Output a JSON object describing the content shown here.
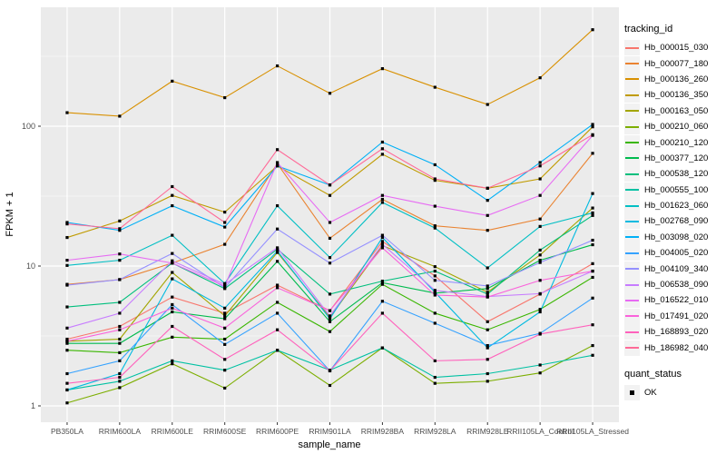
{
  "chart_data": {
    "type": "line",
    "title": "",
    "xlabel": "sample_name",
    "ylabel": "FPKM + 1",
    "y_scale": "log10",
    "y_ticks": [
      1,
      10,
      100
    ],
    "y_minor_ticks": [
      3.162,
      31.62,
      316.2
    ],
    "ylim": [
      1,
      600
    ],
    "grid": "on",
    "point_marker": "black-square",
    "categories": [
      "PB350LA",
      "RRIM600LA",
      "RRIM600LE",
      "RRIM600SE",
      "RRIM600PE",
      "RRIM901LA",
      "RRIM928BA",
      "RRIM928LA",
      "RRIM928LE",
      "RRII105LA_Control",
      "RRII105LA_Stressed"
    ],
    "legend": {
      "title": "tracking_id",
      "position": "right"
    },
    "quant_legend": {
      "title": "quant_status",
      "items": [
        {
          "label": "OK",
          "marker": "black-square"
        }
      ]
    },
    "series": [
      {
        "name": "Hb_000015_030",
        "color": "#F8766D",
        "values": [
          3.0,
          3.7,
          6.0,
          4.6,
          7.3,
          4.8,
          15.0,
          8.5,
          4.0,
          6.3,
          10.4
        ]
      },
      {
        "name": "Hb_000077_180",
        "color": "#EA8331",
        "values": [
          7.4,
          8.0,
          10.5,
          14.3,
          54,
          15.8,
          30,
          19.4,
          18,
          21.7,
          64
        ]
      },
      {
        "name": "Hb_000136_260",
        "color": "#D89000",
        "values": [
          125,
          118,
          210,
          160,
          270,
          172,
          258,
          190,
          143,
          222,
          490
        ]
      },
      {
        "name": "Hb_000136_350",
        "color": "#C09B00",
        "values": [
          16,
          21,
          32,
          24.3,
          52,
          32,
          63,
          41,
          36,
          42,
          99
        ]
      },
      {
        "name": "Hb_000163_050",
        "color": "#A3A500",
        "values": [
          2.9,
          3.0,
          9.0,
          4.4,
          12.5,
          4.3,
          14.0,
          9.9,
          6.5,
          12.0,
          26
        ]
      },
      {
        "name": "Hb_000210_060",
        "color": "#7CAE00",
        "values": [
          1.05,
          1.35,
          2.0,
          1.34,
          2.5,
          1.4,
          2.6,
          1.45,
          1.5,
          1.72,
          2.7
        ]
      },
      {
        "name": "Hb_000210_120",
        "color": "#39B600",
        "values": [
          2.5,
          2.4,
          3.1,
          3.0,
          5.5,
          3.4,
          7.4,
          4.6,
          3.5,
          4.9,
          8.3
        ]
      },
      {
        "name": "Hb_000377_120",
        "color": "#00BB4E",
        "values": [
          2.8,
          2.8,
          4.7,
          4.2,
          10.8,
          4.0,
          7.6,
          6.4,
          6.9,
          11.0,
          14.2
        ]
      },
      {
        "name": "Hb_000538_120",
        "color": "#00BF7D",
        "values": [
          5.1,
          5.5,
          10.5,
          6.9,
          13.2,
          6.3,
          7.8,
          9.2,
          6.3,
          13.0,
          23
        ]
      },
      {
        "name": "Hb_000555_100",
        "color": "#00C1A3",
        "values": [
          1.3,
          1.5,
          2.1,
          1.8,
          2.5,
          1.8,
          2.6,
          1.6,
          1.7,
          1.96,
          2.3
        ]
      },
      {
        "name": "Hb_001623_060",
        "color": "#00BFC4",
        "values": [
          10.1,
          11,
          16.6,
          7.5,
          27,
          11.5,
          28.5,
          18.7,
          9.7,
          19.2,
          24
        ]
      },
      {
        "name": "Hb_002768_090",
        "color": "#00BAE0",
        "values": [
          1.3,
          1.7,
          8.1,
          5.0,
          12.8,
          4.2,
          16.0,
          6.5,
          2.6,
          4.7,
          33
        ]
      },
      {
        "name": "Hb_003098_020",
        "color": "#00B0F6",
        "values": [
          20.5,
          18,
          27,
          19,
          52,
          38,
          77,
          53,
          29.5,
          55,
          103
        ]
      },
      {
        "name": "Hb_004005_020",
        "color": "#35A2FF",
        "values": [
          1.7,
          2.1,
          5.3,
          2.75,
          4.6,
          1.78,
          5.6,
          3.9,
          2.7,
          3.3,
          5.9
        ]
      },
      {
        "name": "Hb_004109_340",
        "color": "#9590FF",
        "values": [
          7.3,
          8.0,
          12.3,
          7.0,
          18.4,
          10.5,
          16.6,
          7.9,
          7.2,
          10.6,
          15.3
        ]
      },
      {
        "name": "Hb_006538_090",
        "color": "#C77CFF",
        "values": [
          3.6,
          4.6,
          10.9,
          7.4,
          13.5,
          4.4,
          14.3,
          6.7,
          6.05,
          6.35,
          9.2
        ]
      },
      {
        "name": "Hb_016522_010",
        "color": "#E76BF3",
        "values": [
          11,
          12.2,
          10.5,
          7.2,
          55,
          20.5,
          32,
          26.8,
          23,
          32,
          86
        ]
      },
      {
        "name": "Hb_017491_020",
        "color": "#FA62DB",
        "values": [
          2.9,
          3.5,
          5.0,
          3.6,
          7.0,
          4.8,
          13.5,
          6.2,
          6.0,
          7.9,
          9.2
        ]
      },
      {
        "name": "Hb_168893_020",
        "color": "#FF62BC",
        "values": [
          1.45,
          1.6,
          3.7,
          2.15,
          3.5,
          1.78,
          4.6,
          2.1,
          2.15,
          3.26,
          3.8
        ]
      },
      {
        "name": "Hb_186982_040",
        "color": "#FF6A98",
        "values": [
          20,
          18.5,
          37,
          20.5,
          68,
          38,
          69,
          42,
          36,
          52,
          87
        ]
      }
    ]
  },
  "theme": {
    "panel_bg": "#EBEBEB",
    "grid_color": "#FFFFFF",
    "axis_text_color": "#4D4D4D",
    "axis_title_color": "#000000",
    "tick_color": "#333333",
    "point_color": "#000000",
    "legend_key_bg": "#F2F2F2",
    "background": "#FFFFFF"
  }
}
